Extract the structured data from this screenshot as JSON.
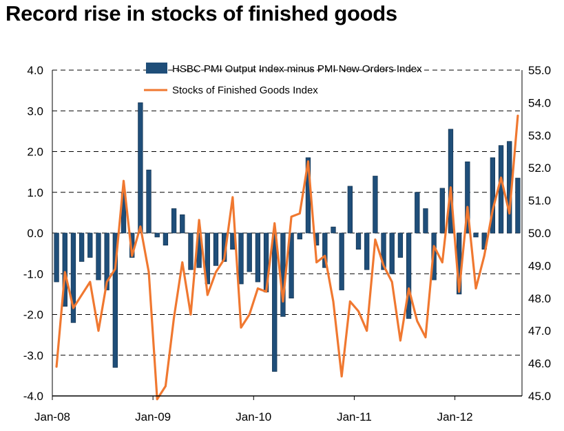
{
  "title": "Record rise in stocks of finished goods",
  "chart_data": {
    "type": "bar+line",
    "title": "Record rise in stocks of finished goods",
    "x_start": "2008-01",
    "x_tick_labels": [
      "Jan-08",
      "Jan-09",
      "Jan-10",
      "Jan-11",
      "Jan-12"
    ],
    "y_left": {
      "min": -4.0,
      "max": 4.0,
      "ticks": [
        "-4.0",
        "-3.0",
        "-2.0",
        "-1.0",
        "0.0",
        "1.0",
        "2.0",
        "3.0",
        "4.0"
      ]
    },
    "y_right": {
      "min": 45.0,
      "max": 55.0,
      "ticks": [
        "45.0",
        "46.0",
        "47.0",
        "48.0",
        "49.0",
        "50.0",
        "51.0",
        "52.0",
        "53.0",
        "54.0",
        "55.0"
      ]
    },
    "grid": "horizontal dashed",
    "legend_position": "top",
    "series": [
      {
        "name": "HSBC PMI Output Index minus PMI New Orders Index",
        "type": "bar",
        "axis": "left",
        "color": "#1f4e79",
        "values": [
          -1.2,
          -1.8,
          -2.2,
          -0.7,
          -0.6,
          -1.15,
          -1.4,
          -3.3,
          1.0,
          -0.6,
          3.2,
          1.55,
          -0.1,
          -0.3,
          0.6,
          0.45,
          -0.9,
          -0.85,
          -1.25,
          -0.8,
          -0.7,
          -0.4,
          -1.25,
          -0.95,
          -1.2,
          -1.45,
          -3.4,
          -2.05,
          -1.6,
          -0.15,
          1.85,
          -0.3,
          -0.85,
          0.15,
          -1.4,
          1.15,
          -0.4,
          -0.9,
          1.4,
          -0.9,
          -1.0,
          -0.6,
          -2.1,
          1.0,
          0.6,
          -1.15,
          1.1,
          2.55,
          -1.5,
          1.75,
          -0.1,
          -0.4,
          1.85,
          2.15,
          2.25,
          1.35
        ]
      },
      {
        "name": "Stocks of Finished Goods Index",
        "type": "line",
        "axis": "right",
        "color": "#f07830",
        "values": [
          45.9,
          48.8,
          47.7,
          48.1,
          48.5,
          47.0,
          48.5,
          48.9,
          51.6,
          49.3,
          50.2,
          48.8,
          44.9,
          45.3,
          47.4,
          49.1,
          47.5,
          50.4,
          48.1,
          48.8,
          49.2,
          51.1,
          47.1,
          47.5,
          48.3,
          48.2,
          50.3,
          47.9,
          50.5,
          50.6,
          52.2,
          49.1,
          49.3,
          47.9,
          45.6,
          47.9,
          47.6,
          47.0,
          49.8,
          49.0,
          48.5,
          46.7,
          48.3,
          47.3,
          46.8,
          49.6,
          49.1,
          51.4,
          48.2,
          50.8,
          48.3,
          49.3,
          50.7,
          51.7,
          50.6,
          53.6
        ]
      }
    ],
    "legend": [
      {
        "label": "HSBC PMI Output Index minus PMI New Orders Index",
        "color": "#1f4e79"
      },
      {
        "label": "Stocks of Finished Goods Index",
        "color": "#f07830"
      }
    ]
  }
}
